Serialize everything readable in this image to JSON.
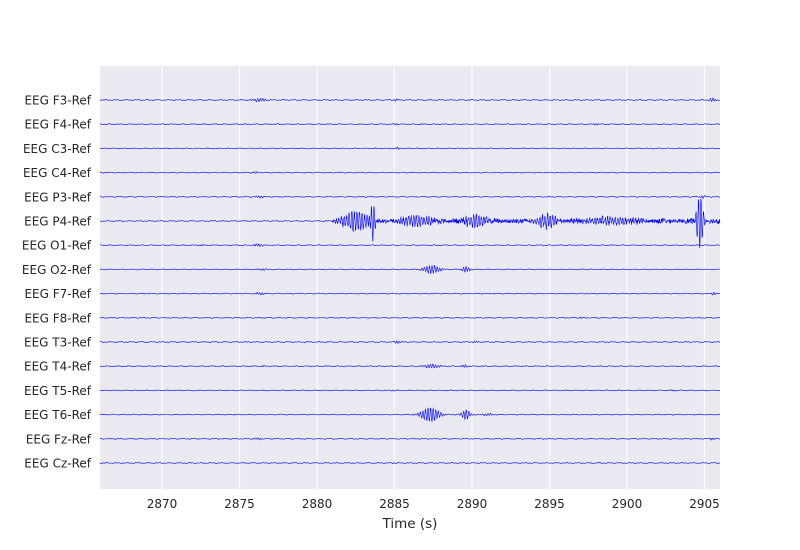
{
  "chart_data": {
    "type": "line",
    "title": "",
    "xlabel": "Time (s)",
    "ylabel": "",
    "xlim": [
      2866,
      2906
    ],
    "xticks": [
      2870,
      2875,
      2880,
      2885,
      2890,
      2895,
      2900,
      2905
    ],
    "xtick_labels": [
      "2870",
      "2875",
      "2880",
      "2885",
      "2890",
      "2895",
      "2900",
      "2905"
    ],
    "grid": true,
    "line_color": "#0000ff",
    "background_color": "#eaeaf2",
    "channels": [
      {
        "name": "EEG F3-Ref",
        "events": [
          {
            "t": 2876.3,
            "width": 0.8,
            "amp": 0.07
          },
          {
            "t": 2885.1,
            "width": 0.3,
            "amp": 0.05
          },
          {
            "t": 2905.5,
            "width": 0.4,
            "amp": 0.08
          }
        ]
      },
      {
        "name": "EEG F4-Ref",
        "events": [
          {
            "t": 2885.1,
            "width": 0.3,
            "amp": 0.04
          },
          {
            "t": 2898.0,
            "width": 0.3,
            "amp": 0.04
          }
        ]
      },
      {
        "name": "EEG C3-Ref",
        "events": [
          {
            "t": 2885.2,
            "width": 0.3,
            "amp": 0.05
          }
        ]
      },
      {
        "name": "EEG C4-Ref",
        "events": [
          {
            "t": 2876.0,
            "width": 0.4,
            "amp": 0.04
          }
        ]
      },
      {
        "name": "EEG P3-Ref",
        "events": [
          {
            "t": 2876.3,
            "width": 0.5,
            "amp": 0.05
          },
          {
            "t": 2904.9,
            "width": 0.3,
            "amp": 0.06
          }
        ]
      },
      {
        "name": "EEG P4-Ref",
        "events": [
          {
            "t": 2882.5,
            "width": 1.6,
            "amp": 0.45
          },
          {
            "t": 2883.6,
            "width": 0.3,
            "amp": 0.9
          },
          {
            "t": 2886.5,
            "width": 2.0,
            "amp": 0.22
          },
          {
            "t": 2890.2,
            "width": 1.2,
            "amp": 0.3
          },
          {
            "t": 2894.8,
            "width": 1.2,
            "amp": 0.3
          },
          {
            "t": 2899.0,
            "width": 3.0,
            "amp": 0.15
          },
          {
            "t": 2904.7,
            "width": 0.4,
            "amp": 1.25
          }
        ],
        "burst": {
          "start": 2881.0,
          "end": 2906.0,
          "amp": 0.12
        }
      },
      {
        "name": "EEG O1-Ref",
        "events": [
          {
            "t": 2876.2,
            "width": 0.6,
            "amp": 0.06
          },
          {
            "t": 2872.5,
            "width": 0.3,
            "amp": 0.03
          }
        ]
      },
      {
        "name": "EEG O2-Ref",
        "events": [
          {
            "t": 2887.4,
            "width": 1.0,
            "amp": 0.18
          },
          {
            "t": 2889.6,
            "width": 0.5,
            "amp": 0.12
          },
          {
            "t": 2876.5,
            "width": 0.4,
            "amp": 0.04
          }
        ]
      },
      {
        "name": "EEG F7-Ref",
        "events": [
          {
            "t": 2876.3,
            "width": 0.6,
            "amp": 0.05
          },
          {
            "t": 2905.6,
            "width": 0.3,
            "amp": 0.06
          }
        ]
      },
      {
        "name": "EEG F8-Ref",
        "events": [
          {
            "t": 2897.0,
            "width": 0.3,
            "amp": 0.03
          }
        ]
      },
      {
        "name": "EEG T3-Ref",
        "events": [
          {
            "t": 2885.2,
            "width": 0.4,
            "amp": 0.06
          },
          {
            "t": 2890.2,
            "width": 0.3,
            "amp": 0.04
          }
        ]
      },
      {
        "name": "EEG T4-Ref",
        "events": [
          {
            "t": 2887.4,
            "width": 1.0,
            "amp": 0.08
          },
          {
            "t": 2889.5,
            "width": 0.4,
            "amp": 0.06
          },
          {
            "t": 2876.5,
            "width": 0.3,
            "amp": 0.03
          }
        ]
      },
      {
        "name": "EEG T5-Ref",
        "events": [
          {
            "t": 2885.0,
            "width": 0.3,
            "amp": 0.03
          },
          {
            "t": 2903.0,
            "width": 0.3,
            "amp": 0.03
          }
        ]
      },
      {
        "name": "EEG T6-Ref",
        "events": [
          {
            "t": 2887.3,
            "width": 1.1,
            "amp": 0.32
          },
          {
            "t": 2889.6,
            "width": 0.5,
            "amp": 0.22
          },
          {
            "t": 2891.0,
            "width": 0.6,
            "amp": 0.05
          }
        ]
      },
      {
        "name": "EEG Fz-Ref",
        "events": [
          {
            "t": 2876.2,
            "width": 0.5,
            "amp": 0.04
          },
          {
            "t": 2905.5,
            "width": 0.3,
            "amp": 0.05
          }
        ]
      },
      {
        "name": "EEG Cz-Ref",
        "events": [
          {
            "t": 2885.0,
            "width": 0.3,
            "amp": 0.02
          }
        ]
      }
    ]
  }
}
